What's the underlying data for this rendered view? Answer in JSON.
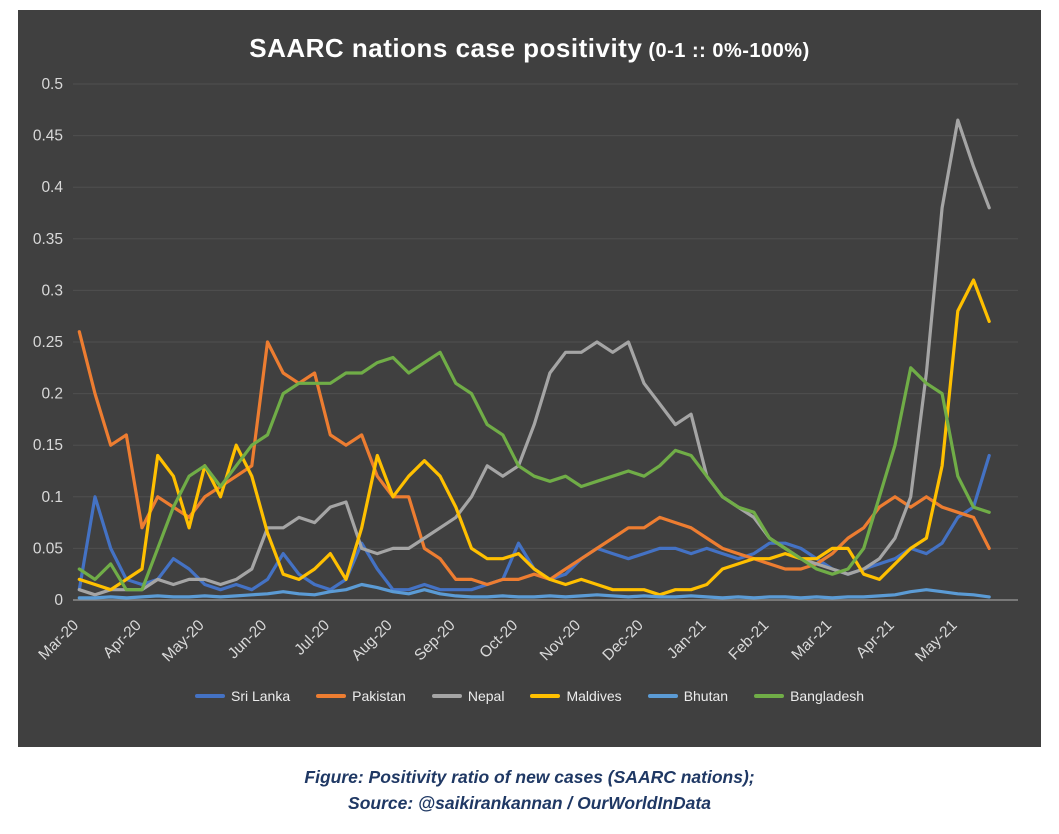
{
  "header": {
    "title": "SAARC nations case positivity",
    "title_suffix": " (0-1 :: 0%-100%)"
  },
  "caption": {
    "line1": "Figure: Positivity ratio of new cases (SAARC nations);",
    "line2": "Source: @saikirankannan / OurWorldInData"
  },
  "colors": {
    "panel_background": "#404040",
    "gridline": "#4f4f4f",
    "axis_line": "#8a8a8a",
    "tick_label": "#d9d9d9",
    "title_text": "#ffffff",
    "caption_text": "#1F3864"
  },
  "chart_data": {
    "type": "line",
    "title": "SAARC nations case positivity (0-1 :: 0%-100%)",
    "xlabel": "",
    "ylabel": "",
    "grid": true,
    "legend_position": "bottom",
    "ylim": [
      0,
      0.5
    ],
    "y_tick_values": [
      0,
      0.05,
      0.1,
      0.15,
      0.2,
      0.25,
      0.3,
      0.35,
      0.4,
      0.45,
      0.5
    ],
    "y_tick_labels": [
      "0",
      "0.05",
      "0.1",
      "0.15",
      "0.2",
      "0.25",
      "0.3",
      "0.35",
      "0.4",
      "0.45",
      "0.5"
    ],
    "xlim": [
      -0.1,
      14.8
    ],
    "x_tick_values": [
      0,
      1,
      2,
      3,
      4,
      5,
      6,
      7,
      8,
      9,
      10,
      11,
      12,
      13,
      14
    ],
    "x_tick_labels": [
      "Mar-20",
      "Apr-20",
      "May-20",
      "Jun-20",
      "Jul-20",
      "Aug-20",
      "Sep-20",
      "Oct-20",
      "Nov-20",
      "Dec-20",
      "Jan-21",
      "Feb-21",
      "Mar-21",
      "Apr-21",
      "May-21"
    ],
    "x_unit": "months since Mar-2020, weekly samples",
    "x_start": 0,
    "x_step": 0.25,
    "series": [
      {
        "name": "Sri Lanka",
        "color": "#4472C4",
        "values": [
          0.01,
          0.1,
          0.05,
          0.02,
          0.015,
          0.02,
          0.04,
          0.03,
          0.015,
          0.01,
          0.015,
          0.01,
          0.02,
          0.045,
          0.025,
          0.015,
          0.01,
          0.02,
          0.055,
          0.03,
          0.01,
          0.01,
          0.015,
          0.01,
          0.01,
          0.01,
          0.015,
          0.02,
          0.055,
          0.03,
          0.02,
          0.025,
          0.04,
          0.05,
          0.045,
          0.04,
          0.045,
          0.05,
          0.05,
          0.045,
          0.05,
          0.045,
          0.04,
          0.045,
          0.055,
          0.055,
          0.05,
          0.04,
          0.03,
          0.025,
          0.03,
          0.035,
          0.04,
          0.05,
          0.045,
          0.055,
          0.08,
          0.09,
          0.14
        ]
      },
      {
        "name": "Pakistan",
        "color": "#ED7D31",
        "values": [
          0.26,
          0.2,
          0.15,
          0.16,
          0.07,
          0.1,
          0.09,
          0.08,
          0.1,
          0.11,
          0.12,
          0.13,
          0.25,
          0.22,
          0.21,
          0.22,
          0.16,
          0.15,
          0.16,
          0.12,
          0.1,
          0.1,
          0.05,
          0.04,
          0.02,
          0.02,
          0.015,
          0.02,
          0.02,
          0.025,
          0.02,
          0.03,
          0.04,
          0.05,
          0.06,
          0.07,
          0.07,
          0.08,
          0.075,
          0.07,
          0.06,
          0.05,
          0.045,
          0.04,
          0.035,
          0.03,
          0.03,
          0.035,
          0.045,
          0.06,
          0.07,
          0.09,
          0.1,
          0.09,
          0.1,
          0.09,
          0.085,
          0.08,
          0.05
        ]
      },
      {
        "name": "Nepal",
        "color": "#A5A5A5",
        "values": [
          0.01,
          0.005,
          0.01,
          0.01,
          0.01,
          0.02,
          0.015,
          0.02,
          0.02,
          0.015,
          0.02,
          0.03,
          0.07,
          0.07,
          0.08,
          0.075,
          0.09,
          0.095,
          0.05,
          0.045,
          0.05,
          0.05,
          0.06,
          0.07,
          0.08,
          0.1,
          0.13,
          0.12,
          0.13,
          0.17,
          0.22,
          0.24,
          0.24,
          0.25,
          0.24,
          0.25,
          0.21,
          0.19,
          0.17,
          0.18,
          0.12,
          0.1,
          0.09,
          0.08,
          0.06,
          0.05,
          0.04,
          0.035,
          0.03,
          0.025,
          0.03,
          0.04,
          0.06,
          0.1,
          0.22,
          0.38,
          0.465,
          0.42,
          0.38
        ]
      },
      {
        "name": "Maldives",
        "color": "#FFC000",
        "values": [
          0.02,
          0.015,
          0.01,
          0.02,
          0.03,
          0.14,
          0.12,
          0.07,
          0.13,
          0.1,
          0.15,
          0.12,
          0.065,
          0.025,
          0.02,
          0.03,
          0.045,
          0.02,
          0.07,
          0.14,
          0.1,
          0.12,
          0.135,
          0.12,
          0.09,
          0.05,
          0.04,
          0.04,
          0.045,
          0.03,
          0.02,
          0.015,
          0.02,
          0.015,
          0.01,
          0.01,
          0.01,
          0.005,
          0.01,
          0.01,
          0.015,
          0.03,
          0.035,
          0.04,
          0.04,
          0.045,
          0.04,
          0.04,
          0.05,
          0.05,
          0.025,
          0.02,
          0.035,
          0.05,
          0.06,
          0.13,
          0.28,
          0.31,
          0.27
        ]
      },
      {
        "name": "Bhutan",
        "color": "#5B9BD5",
        "values": [
          0.002,
          0.002,
          0.003,
          0.002,
          0.003,
          0.004,
          0.003,
          0.003,
          0.004,
          0.003,
          0.004,
          0.005,
          0.006,
          0.008,
          0.006,
          0.005,
          0.008,
          0.01,
          0.015,
          0.012,
          0.008,
          0.006,
          0.01,
          0.006,
          0.004,
          0.003,
          0.003,
          0.004,
          0.003,
          0.003,
          0.004,
          0.003,
          0.004,
          0.005,
          0.004,
          0.003,
          0.004,
          0.003,
          0.003,
          0.004,
          0.003,
          0.002,
          0.003,
          0.002,
          0.003,
          0.003,
          0.002,
          0.003,
          0.002,
          0.003,
          0.003,
          0.004,
          0.005,
          0.008,
          0.01,
          0.008,
          0.006,
          0.005,
          0.003
        ]
      },
      {
        "name": "Bangladesh",
        "color": "#70AD47",
        "values": [
          0.03,
          0.02,
          0.035,
          0.01,
          0.01,
          0.05,
          0.09,
          0.12,
          0.13,
          0.11,
          0.13,
          0.15,
          0.16,
          0.2,
          0.21,
          0.21,
          0.21,
          0.22,
          0.22,
          0.23,
          0.235,
          0.22,
          0.23,
          0.24,
          0.21,
          0.2,
          0.17,
          0.16,
          0.13,
          0.12,
          0.115,
          0.12,
          0.11,
          0.115,
          0.12,
          0.125,
          0.12,
          0.13,
          0.145,
          0.14,
          0.12,
          0.1,
          0.09,
          0.085,
          0.06,
          0.05,
          0.04,
          0.03,
          0.025,
          0.03,
          0.05,
          0.1,
          0.15,
          0.225,
          0.21,
          0.2,
          0.12,
          0.09,
          0.085
        ]
      }
    ]
  }
}
